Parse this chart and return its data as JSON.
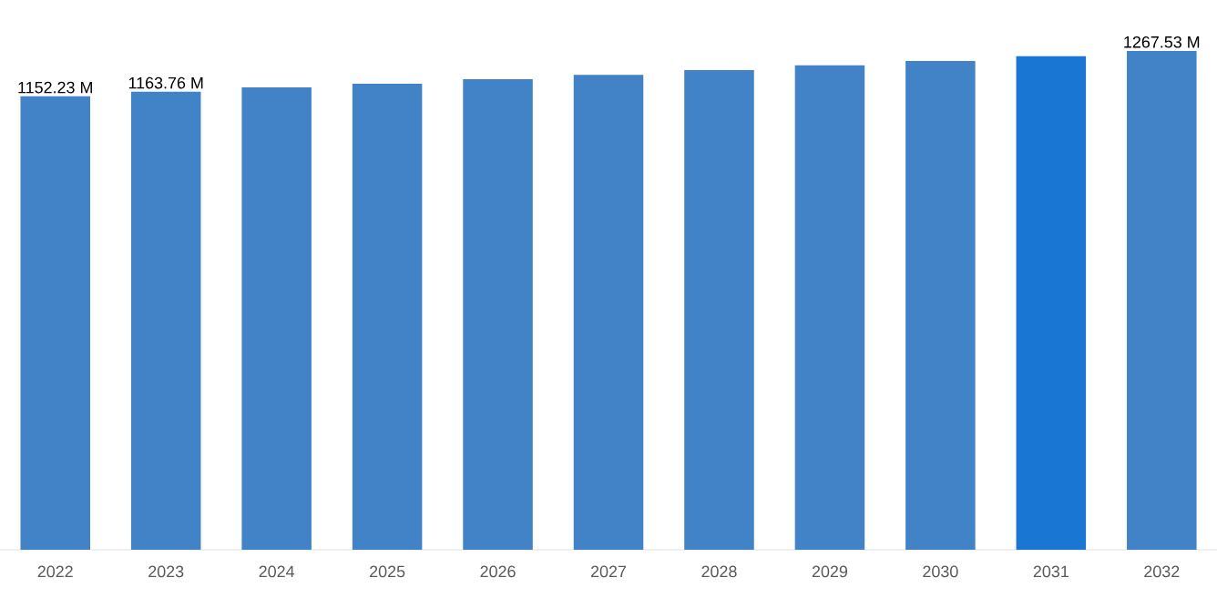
{
  "chart_data": {
    "type": "bar",
    "categories": [
      "2022",
      "2023",
      "2024",
      "2025",
      "2026",
      "2027",
      "2028",
      "2029",
      "2030",
      "2031",
      "2032"
    ],
    "values": [
      1152.23,
      1163.76,
      1175,
      1184,
      1196,
      1207,
      1219,
      1231,
      1242,
      1254,
      1267.53
    ],
    "colors": [
      "#4282c6",
      "#4282c6",
      "#4282c6",
      "#4282c6",
      "#4282c6",
      "#4282c6",
      "#4282c6",
      "#4282c6",
      "#4282c6",
      "#1976d2",
      "#4282c6"
    ],
    "value_labels": [
      "1152.23 M",
      "1163.76 M",
      null,
      null,
      null,
      null,
      null,
      null,
      null,
      null,
      "1267.53 M"
    ]
  }
}
